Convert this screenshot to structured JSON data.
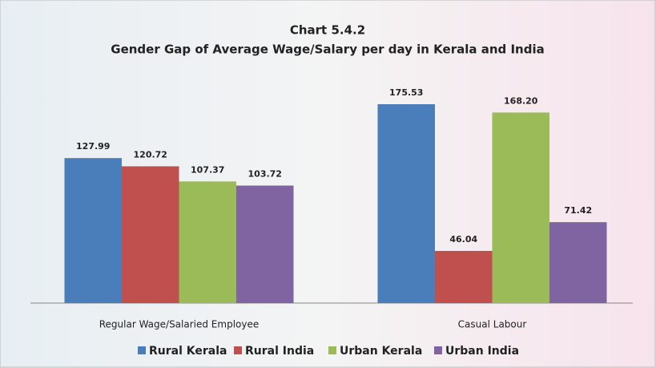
{
  "chart_data": {
    "type": "bar",
    "title": "Chart 5.4.2",
    "subtitle": "Gender Gap of Average Wage/Salary per day in Kerala and India",
    "categories": [
      "Regular Wage/Salaried Employee",
      "Casual Labour"
    ],
    "series": [
      {
        "name": "Rural Kerala",
        "color": "#4a7ebb",
        "values": [
          127.99,
          175.53
        ],
        "value_labels": [
          "127.99",
          "175.53"
        ]
      },
      {
        "name": "Rural India",
        "color": "#c0504d",
        "values": [
          120.72,
          46.04
        ],
        "value_labels": [
          "120.72",
          "46.04"
        ]
      },
      {
        "name": "Urban Kerala",
        "color": "#9bbb59",
        "values": [
          107.37,
          168.2
        ],
        "value_labels": [
          "107.37",
          "168.20"
        ]
      },
      {
        "name": "Urban India",
        "color": "#8064a2",
        "values": [
          103.72,
          71.42
        ],
        "value_labels": [
          "103.72",
          "71.42"
        ]
      }
    ],
    "legend": "bottom"
  }
}
